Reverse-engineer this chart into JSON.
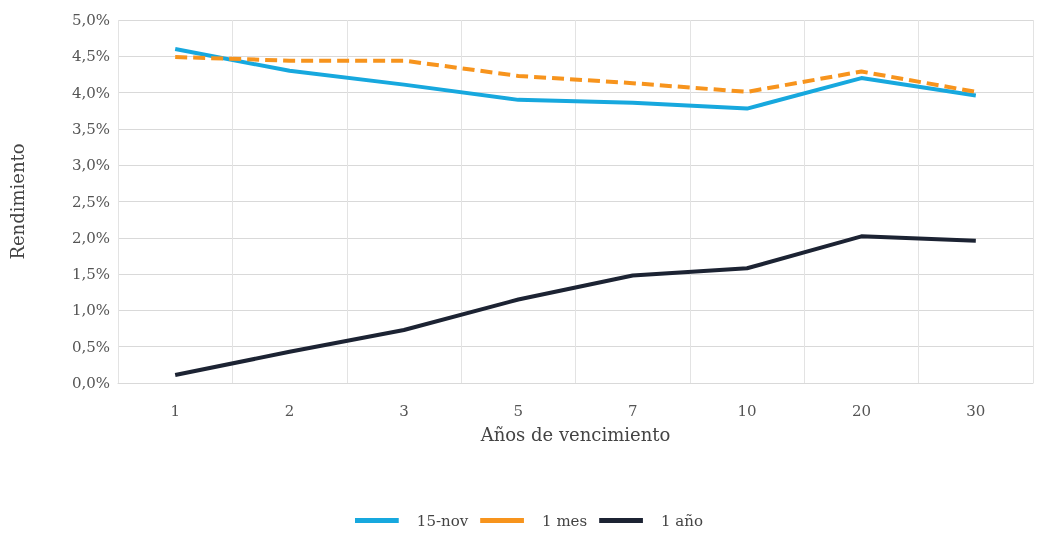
{
  "chart_data": {
    "type": "line",
    "xlabel": "Años de vencimiento",
    "ylabel": "Rendimiento",
    "categories": [
      "1",
      "2",
      "3",
      "5",
      "7",
      "10",
      "20",
      "30"
    ],
    "series": [
      {
        "name": "15-nov",
        "color": "#17a8de",
        "line_style": "solid",
        "values": [
          4.6,
          4.3,
          4.11,
          3.9,
          3.86,
          3.78,
          4.2,
          3.96
        ]
      },
      {
        "name": "1 mes",
        "color": "#f7941d",
        "line_style": "dashed",
        "values": [
          4.49,
          4.44,
          4.44,
          4.23,
          4.13,
          4.01,
          4.29,
          4.01
        ]
      },
      {
        "name": "1 año",
        "color": "#1c2333",
        "line_style": "solid",
        "values": [
          0.11,
          0.43,
          0.73,
          1.15,
          1.48,
          1.58,
          2.02,
          1.96
        ]
      }
    ],
    "ylim": [
      0,
      5
    ],
    "yticks": [
      {
        "value": 0,
        "label": "0,0%"
      },
      {
        "value": 0.5,
        "label": "0,5%"
      },
      {
        "value": 1,
        "label": "1,0%"
      },
      {
        "value": 1.5,
        "label": "1,5%"
      },
      {
        "value": 2,
        "label": "2,0%"
      },
      {
        "value": 2.5,
        "label": "2,5%"
      },
      {
        "value": 3,
        "label": "3,0%"
      },
      {
        "value": 3.5,
        "label": "3,5%"
      },
      {
        "value": 4,
        "label": "4,0%"
      },
      {
        "value": 4.5,
        "label": "4,5%"
      },
      {
        "value": 5,
        "label": "5,0%"
      }
    ],
    "grid": true,
    "legend": "bottom",
    "marker": "none"
  }
}
